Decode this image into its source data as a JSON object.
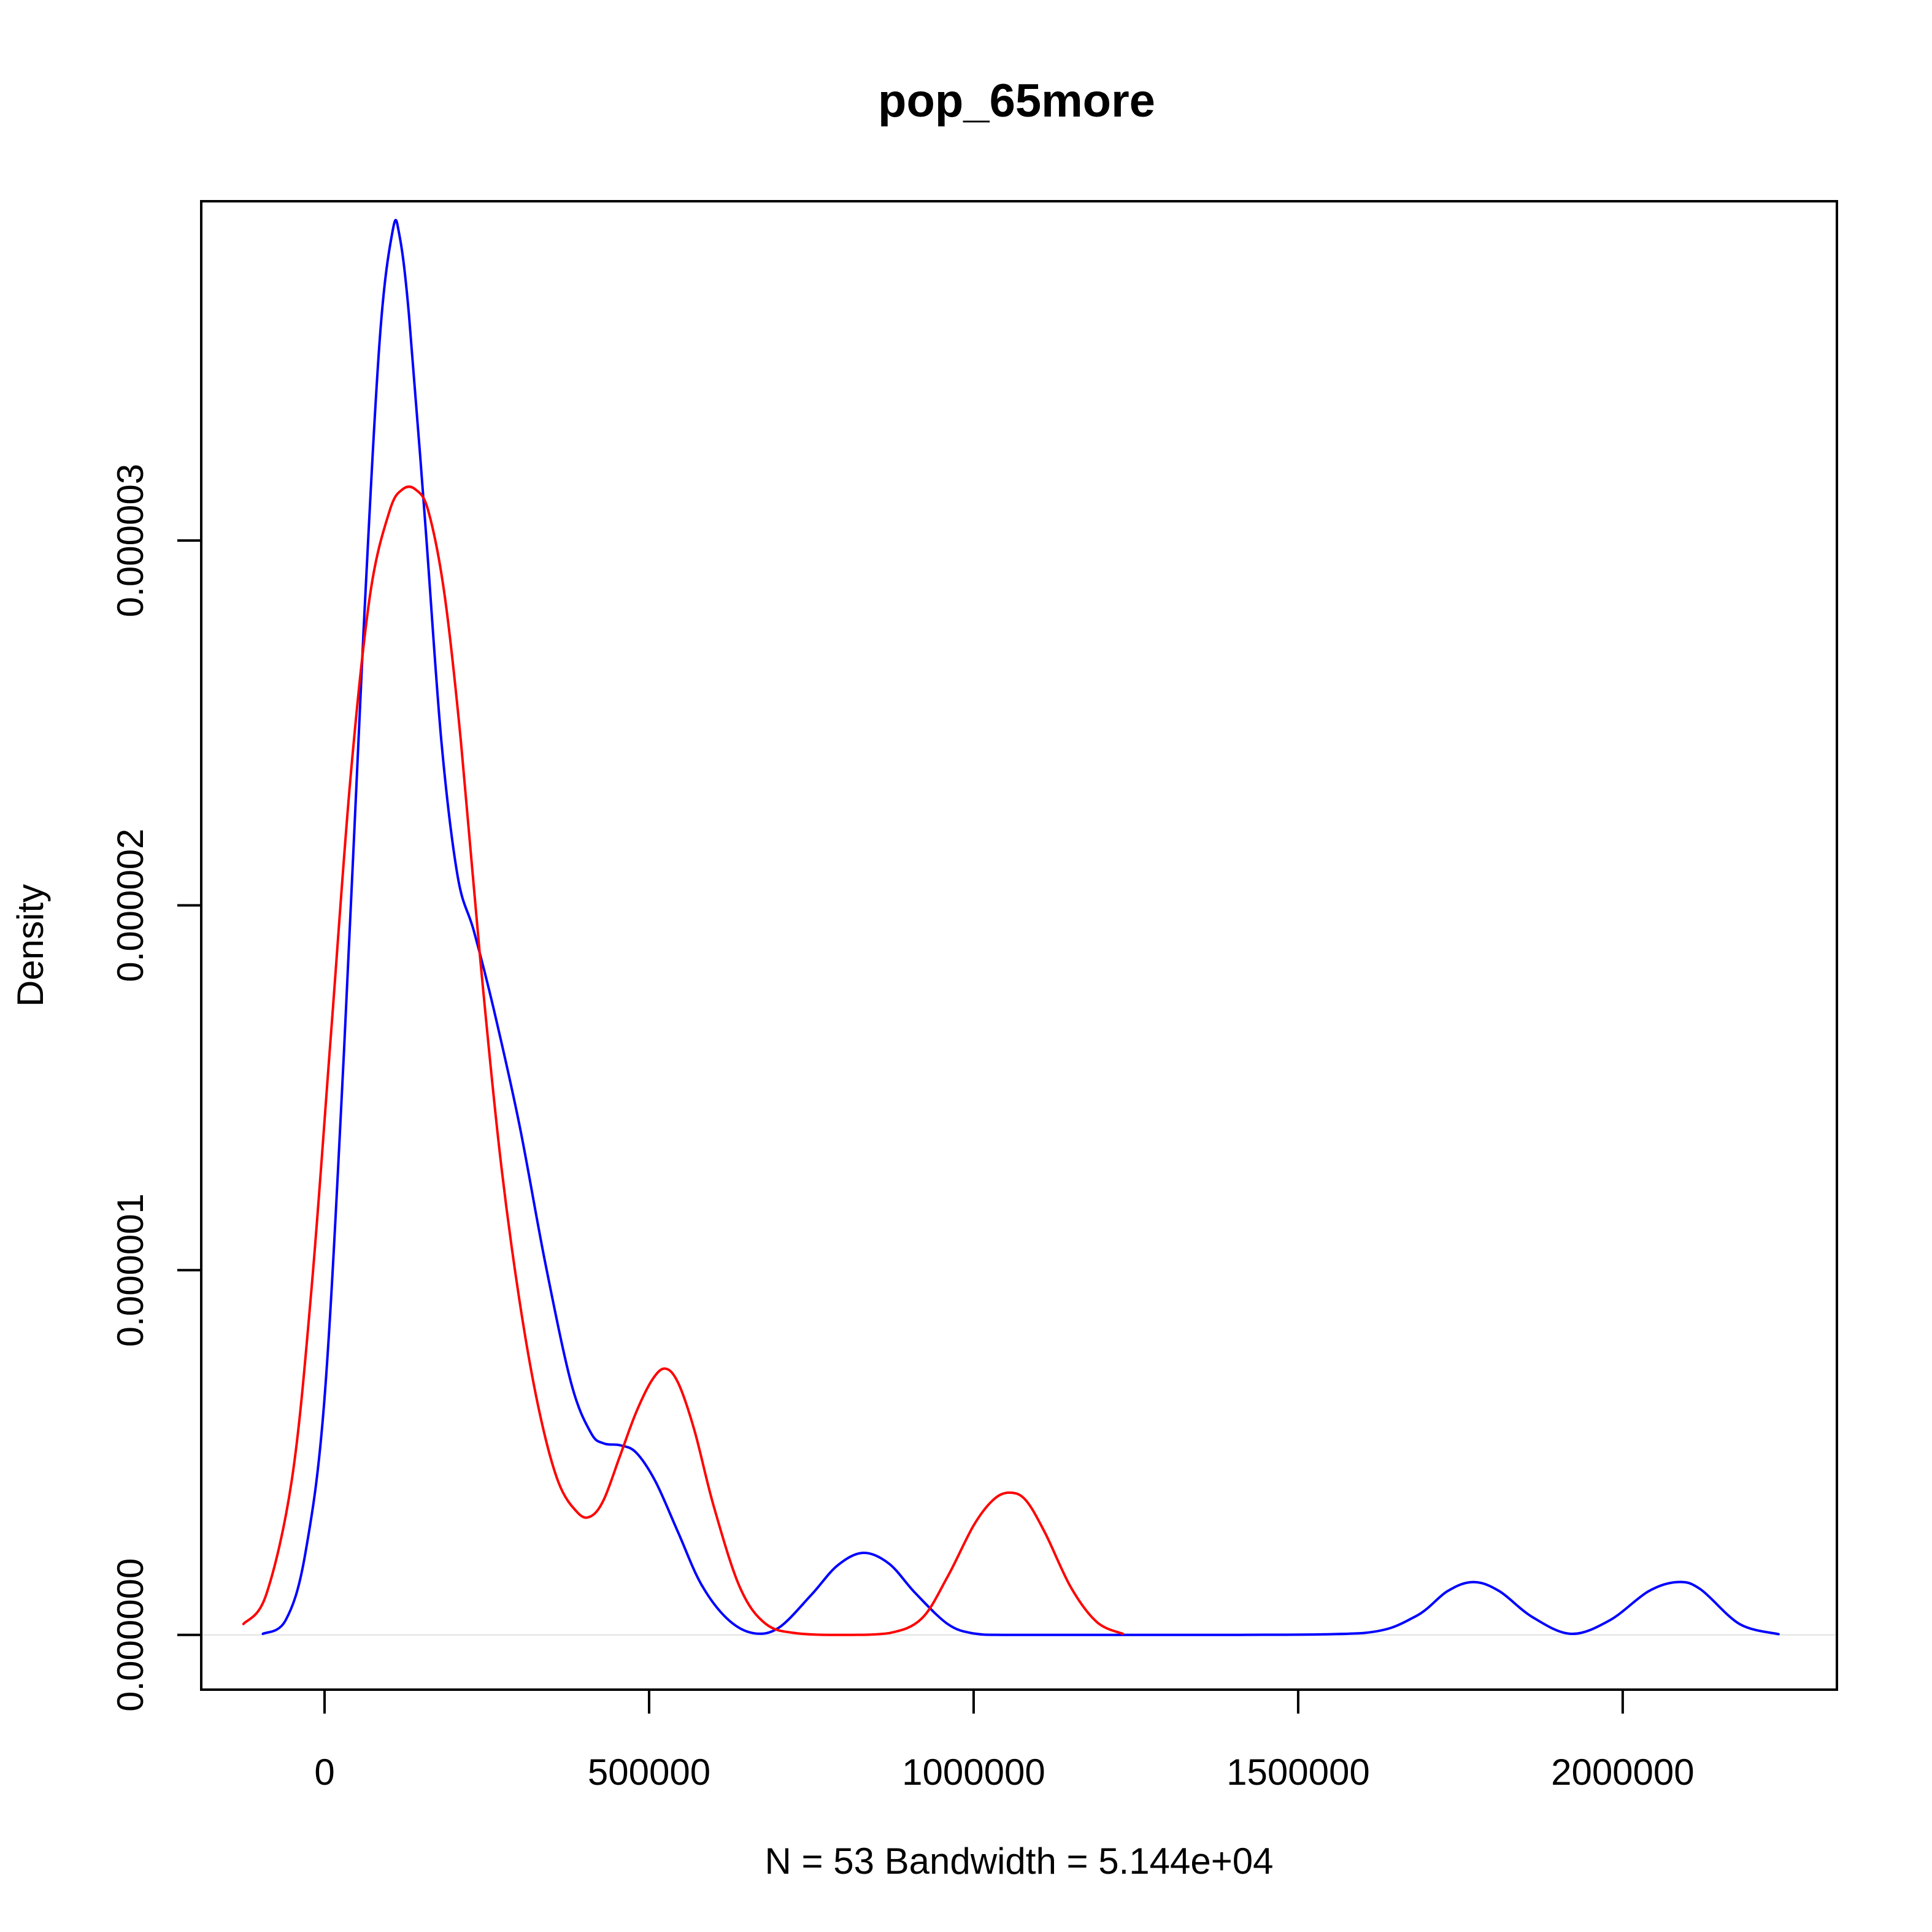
{
  "chart_data": {
    "type": "line",
    "title": "pop_65more",
    "xlabel": "N = 53   Bandwidth = 5.144e+04",
    "ylabel": "Density",
    "xlim": [
      -190000,
      2330000
    ],
    "ylim": [
      -1.5e-07,
      3.93e-06
    ],
    "x_ticks": [
      0,
      500000,
      1000000,
      1500000,
      2000000
    ],
    "x_tick_labels": [
      "0",
      "500000",
      "1000000",
      "1500000",
      "2000000"
    ],
    "y_ticks": [
      0,
      1e-06,
      2e-06,
      3e-06
    ],
    "y_tick_labels": [
      "0.000000",
      "0.000001",
      "0.000002",
      "0.000003"
    ],
    "grid": false,
    "series": [
      {
        "color": "#0000ff",
        "x": [
          -95000,
          -60000,
          -30000,
          0,
          30000,
          60000,
          85000,
          105000,
          115000,
          130000,
          155000,
          180000,
          205000,
          230000,
          260000,
          300000,
          340000,
          380000,
          410000,
          430000,
          455000,
          480000,
          510000,
          545000,
          580000,
          620000,
          660000,
          700000,
          750000,
          790000,
          830000,
          870000,
          910000,
          960000,
          1000000,
          1050000,
          1200000,
          1400000,
          1600000,
          1680000,
          1730000,
          1770000,
          1810000,
          1860000,
          1920000,
          1980000,
          2040000,
          2085000,
          2120000,
          2180000,
          2240000
        ],
        "y": [
          3e-09,
          4e-08,
          2.2e-07,
          6.5e-07,
          1.6e-06,
          2.75e-06,
          3.55e-06,
          3.85e-06,
          3.84e-06,
          3.62e-06,
          3.05e-06,
          2.45e-06,
          2.08e-06,
          1.93e-06,
          1.72e-06,
          1.4e-06,
          1.02e-06,
          6.9e-07,
          5.55e-07,
          5.25e-07,
          5.2e-07,
          5e-07,
          4.2e-07,
          2.8e-07,
          1.4e-07,
          4.5e-08,
          5e-09,
          2e-08,
          1.1e-07,
          1.9e-07,
          2.25e-07,
          1.95e-07,
          1.15e-07,
          3e-08,
          4e-09,
          0,
          0,
          0,
          5e-09,
          5e-08,
          1.2e-07,
          1.45e-07,
          1.2e-07,
          5e-08,
          3e-09,
          4e-08,
          1.2e-07,
          1.45e-07,
          1.25e-07,
          3e-08,
          2e-09
        ]
      },
      {
        "color": "#ff0000",
        "x": [
          -125000,
          -90000,
          -50000,
          -20000,
          10000,
          40000,
          70000,
          100000,
          120000,
          140000,
          160000,
          185000,
          210000,
          240000,
          270000,
          300000,
          330000,
          360000,
          390000,
          410000,
          430000,
          455000,
          480000,
          505000,
          525000,
          545000,
          570000,
          600000,
          640000,
          680000,
          730000,
          800000,
          870000,
          920000,
          960000,
          1000000,
          1030000,
          1055000,
          1080000,
          1110000,
          1150000,
          1190000,
          1230000
        ],
        "y": [
          3e-08,
          1.1e-07,
          4.3e-07,
          9.5e-07,
          1.65e-06,
          2.35e-06,
          2.85e-06,
          3.08e-06,
          3.14e-06,
          3.14e-06,
          3.08e-06,
          2.85e-06,
          2.45e-06,
          1.85e-06,
          1.32e-06,
          9.2e-07,
          6.2e-07,
          4.2e-07,
          3.35e-07,
          3.25e-07,
          3.7e-07,
          4.9e-07,
          6.1e-07,
          7e-07,
          7.3e-07,
          6.9e-07,
          5.6e-07,
          3.5e-07,
          1.3e-07,
          3e-08,
          4e-09,
          0,
          5e-09,
          4.5e-08,
          1.6e-07,
          3e-07,
          3.7e-07,
          3.9e-07,
          3.7e-07,
          2.8e-07,
          1.3e-07,
          3.5e-08,
          3e-09
        ]
      }
    ]
  }
}
